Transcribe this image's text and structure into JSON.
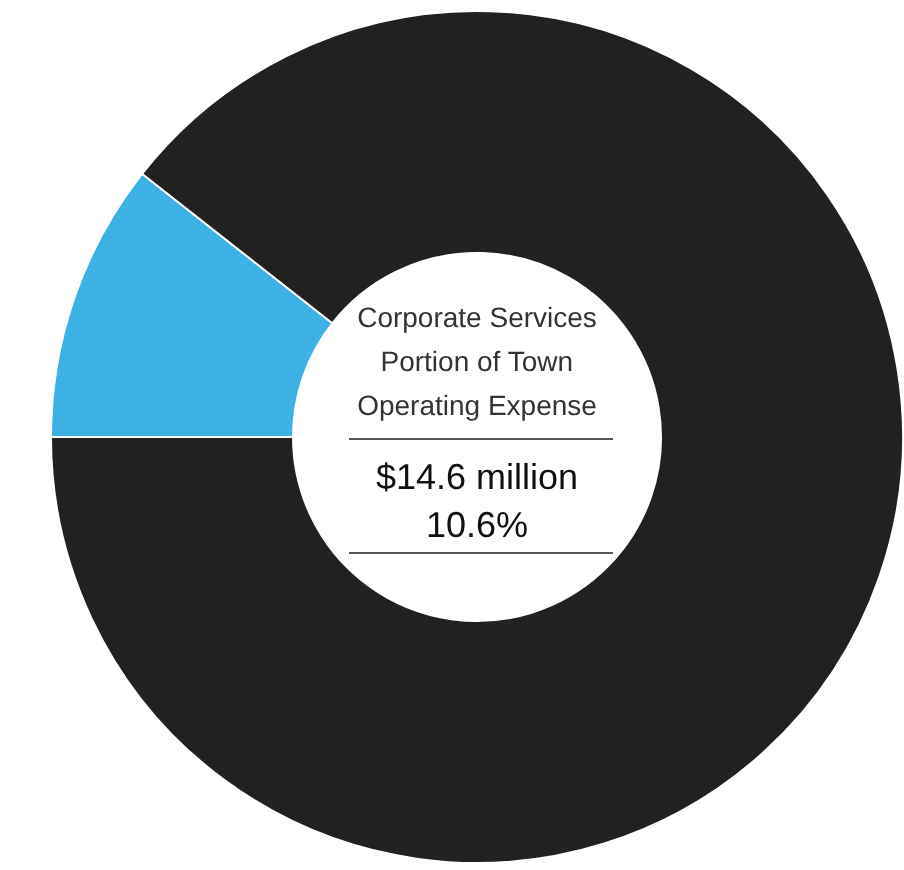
{
  "chart_data": {
    "type": "donut",
    "title": "Corporate Services Portion of Town Operating Expense",
    "categories": [
      null,
      null
    ],
    "values": [
      10.6,
      89.4
    ],
    "colors": [
      "#3db1e4",
      "#222120"
    ],
    "annotations": [
      "$14.6 million",
      "10.6%"
    ]
  }
}
